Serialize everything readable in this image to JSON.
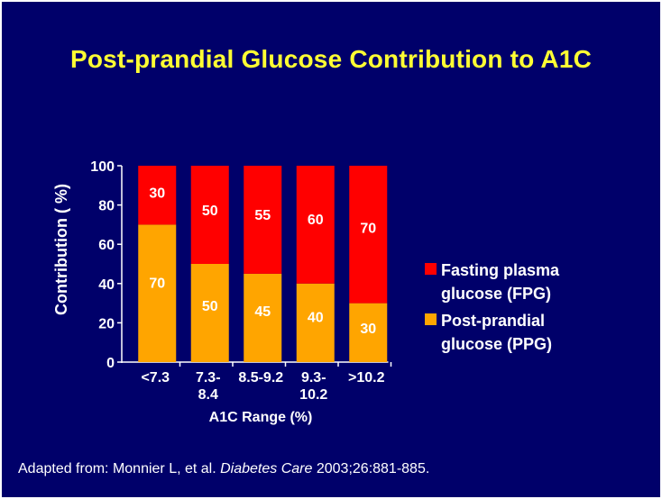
{
  "title": "Post-prandial Glucose Contribution to A1C",
  "citation": {
    "prefix": "Adapted from: Monnier L, et al. ",
    "journal": "Diabetes Care",
    "suffix": " 2003;26:881-885."
  },
  "colors": {
    "background": "#00006a",
    "title": "#ffff33",
    "text": "#ffffff",
    "fpg": "#ff0000",
    "ppg": "#ffa500"
  },
  "chart_data": {
    "type": "bar",
    "stacked": true,
    "categories": [
      [
        "<7.3"
      ],
      [
        "7.3-",
        "8.4"
      ],
      [
        "8.5-9.2"
      ],
      [
        "9.3-",
        "10.2"
      ],
      [
        ">10.2"
      ]
    ],
    "series": [
      {
        "name": "Post-prandial glucose (PPG)",
        "legend_lines": [
          "Post-prandial",
          "glucose (PPG)"
        ],
        "color": "#ffa500",
        "values": [
          70,
          50,
          45,
          40,
          30
        ]
      },
      {
        "name": "Fasting plasma glucose  (FPG)",
        "legend_lines": [
          "Fasting plasma",
          "glucose  (FPG)"
        ],
        "color": "#ff0000",
        "values": [
          30,
          50,
          55,
          60,
          70
        ]
      }
    ],
    "legend_order": [
      1,
      0
    ],
    "legend_position": "right",
    "xlabel": "A1C Range (%)",
    "ylabel": "Contribution ( %)",
    "ylim": [
      0,
      100
    ],
    "yticks": [
      0,
      20,
      40,
      60,
      80,
      100
    ],
    "grid": false
  }
}
